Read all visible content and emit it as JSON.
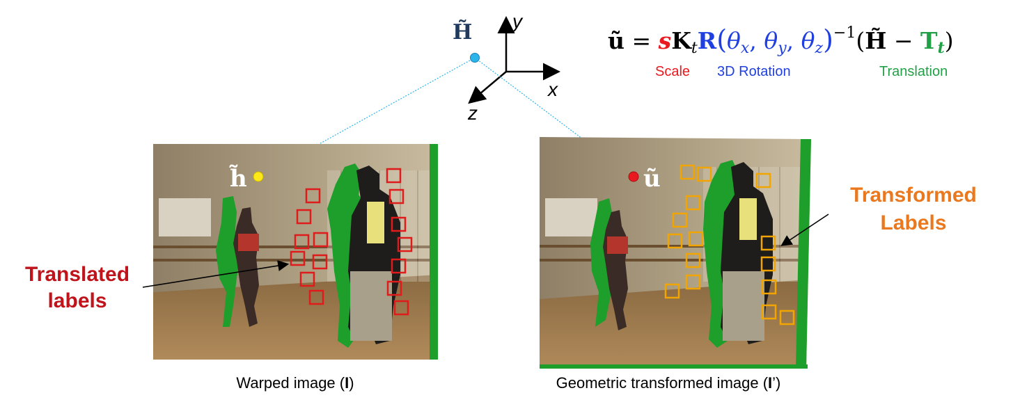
{
  "axes": {
    "point_label": "H̃",
    "x_label": "x",
    "y_label": "y",
    "z_label": "z"
  },
  "equation": {
    "lhs": "ũ",
    "equals": " = ",
    "s": "s",
    "K": "K",
    "K_sub": "t",
    "R": "R",
    "theta": "θ",
    "sub_x": "x",
    "sub_y": "y",
    "sub_z": "z",
    "comma": ", ",
    "exponent": "−1",
    "H": "H̃",
    "minus": " − ",
    "T": "T",
    "T_sub": "t",
    "caption_scale": "Scale",
    "caption_rotation": "3D Rotation",
    "caption_translation": "Translation"
  },
  "left_image": {
    "point_label": "h̃",
    "caption_prefix": "Warped image (",
    "caption_bold": "I",
    "caption_suffix": ")"
  },
  "right_image": {
    "point_label": "ũ",
    "caption_prefix": "Geometric transformed image (",
    "caption_bold": "I",
    "caption_suffix": "’)"
  },
  "annotations": {
    "translated_line1": "Translated",
    "translated_line2": "labels",
    "transformed_line1": "Transformed",
    "transformed_line2": "Labels"
  },
  "colors": {
    "scale": "#e8191f",
    "rotation": "#1f3fe0",
    "translation": "#21a047",
    "translated_labels": "#c0141c",
    "transformed_labels": "#e9781f",
    "red_box": "#e01b1b",
    "orange_box": "#f2a500",
    "green_silhouette": "#1e9e2a",
    "point_h": "#ffe81a",
    "point_u": "#e8191f",
    "point_H": "#2ab4ea"
  }
}
